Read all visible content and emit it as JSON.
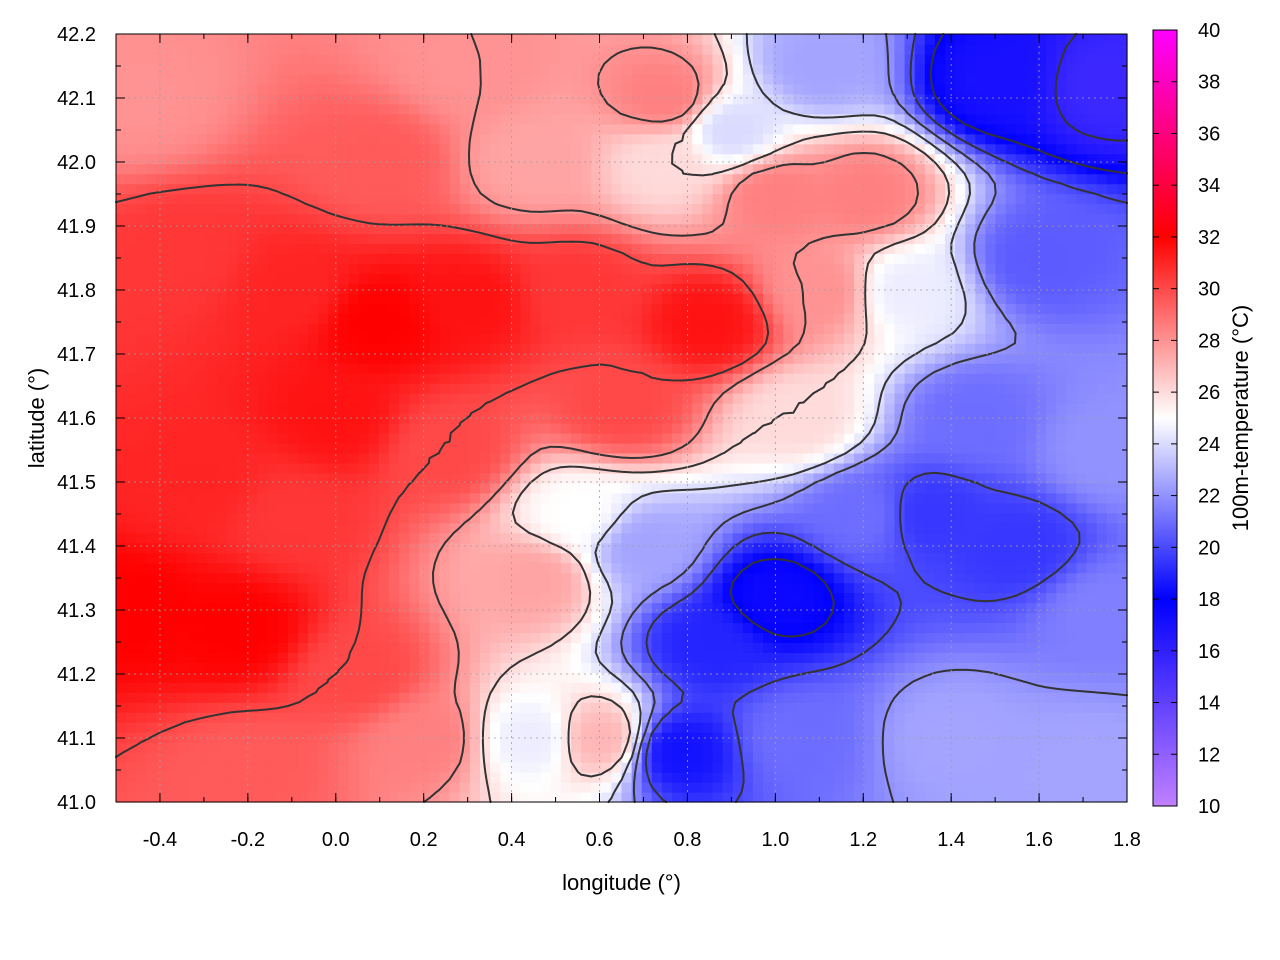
{
  "chart_data": {
    "type": "heatmap",
    "title": "",
    "xlabel": "longitude (°)",
    "ylabel": "latitude (°)",
    "colorbar_label": "100m-temperature (°C)",
    "xlim": [
      -0.5,
      1.8
    ],
    "ylim": [
      41.0,
      42.2
    ],
    "x_ticks": [
      -0.4,
      -0.2,
      0.0,
      0.2,
      0.4,
      0.6,
      0.8,
      1.0,
      1.2,
      1.4,
      1.6,
      1.8
    ],
    "x_tick_labels": [
      "-0.4",
      "-0.2",
      "0.0",
      "0.2",
      "0.4",
      "0.6",
      "0.8",
      "1.0",
      "1.2",
      "1.4",
      "1.6",
      "1.8"
    ],
    "y_ticks": [
      41.0,
      41.1,
      41.2,
      41.3,
      41.4,
      41.5,
      41.6,
      41.7,
      41.8,
      41.9,
      42.0,
      42.1,
      42.2
    ],
    "y_tick_labels": [
      "41.0",
      "41.1",
      "41.2",
      "41.3",
      "41.4",
      "41.5",
      "41.6",
      "41.7",
      "41.8",
      "41.9",
      "42.0",
      "42.1",
      "42.2"
    ],
    "color_range": [
      10,
      40
    ],
    "colorbar_ticks": [
      10,
      12,
      14,
      16,
      18,
      20,
      22,
      24,
      26,
      28,
      30,
      32,
      34,
      36,
      38,
      40
    ],
    "colorbar_tick_labels": [
      "10",
      "12",
      "14",
      "16",
      "18",
      "20",
      "22",
      "24",
      "26",
      "28",
      "30",
      "32",
      "34",
      "36",
      "38",
      "40"
    ],
    "colormap": [
      {
        "value": 10,
        "color": "#c080ff"
      },
      {
        "value": 18,
        "color": "#0000ff"
      },
      {
        "value": 25,
        "color": "#ffffff"
      },
      {
        "value": 32,
        "color": "#ff0000"
      },
      {
        "value": 40,
        "color": "#ff00ff"
      }
    ],
    "grid": true,
    "contour_interval": 2,
    "field_anchors": [
      {
        "x": -0.45,
        "y": 41.3,
        "value": 32.0
      },
      {
        "x": -0.22,
        "y": 41.27,
        "value": 32.0
      },
      {
        "x": -0.3,
        "y": 41.5,
        "value": 31.0
      },
      {
        "x": -0.1,
        "y": 41.45,
        "value": 30.5
      },
      {
        "x": 0.0,
        "y": 41.6,
        "value": 31.5
      },
      {
        "x": 0.1,
        "y": 41.75,
        "value": 32.0
      },
      {
        "x": -0.1,
        "y": 41.8,
        "value": 31.0
      },
      {
        "x": -0.35,
        "y": 41.85,
        "value": 30.5
      },
      {
        "x": 0.3,
        "y": 41.78,
        "value": 31.5
      },
      {
        "x": 0.55,
        "y": 41.8,
        "value": 30.5
      },
      {
        "x": 0.85,
        "y": 41.75,
        "value": 31.5
      },
      {
        "x": 0.65,
        "y": 41.62,
        "value": 30.0
      },
      {
        "x": 0.25,
        "y": 41.55,
        "value": 30.0
      },
      {
        "x": 0.1,
        "y": 42.0,
        "value": 29.5
      },
      {
        "x": -0.45,
        "y": 42.1,
        "value": 28.0
      },
      {
        "x": 0.3,
        "y": 42.15,
        "value": 28.0
      },
      {
        "x": 0.45,
        "y": 42.0,
        "value": 27.5
      },
      {
        "x": 0.75,
        "y": 42.1,
        "value": 28.5
      },
      {
        "x": 0.75,
        "y": 42.0,
        "value": 26.0
      },
      {
        "x": 0.9,
        "y": 42.05,
        "value": 24.0
      },
      {
        "x": 1.0,
        "y": 41.95,
        "value": 28.5
      },
      {
        "x": 1.2,
        "y": 41.95,
        "value": 28.5
      },
      {
        "x": 1.1,
        "y": 42.15,
        "value": 22.5
      },
      {
        "x": 1.3,
        "y": 41.8,
        "value": 24.5
      },
      {
        "x": 1.1,
        "y": 41.8,
        "value": 28.0
      },
      {
        "x": 1.05,
        "y": 41.6,
        "value": 26.0
      },
      {
        "x": 1.5,
        "y": 42.13,
        "value": 17.0
      },
      {
        "x": 1.75,
        "y": 42.12,
        "value": 15.5
      },
      {
        "x": 1.6,
        "y": 41.85,
        "value": 20.5
      },
      {
        "x": 1.45,
        "y": 41.6,
        "value": 21.0
      },
      {
        "x": 1.35,
        "y": 41.45,
        "value": 19.5
      },
      {
        "x": 1.55,
        "y": 41.4,
        "value": 19.5
      },
      {
        "x": 1.75,
        "y": 41.55,
        "value": 22.0
      },
      {
        "x": 1.75,
        "y": 41.3,
        "value": 21.5
      },
      {
        "x": 1.2,
        "y": 41.45,
        "value": 21.0
      },
      {
        "x": 1.0,
        "y": 41.32,
        "value": 17.5
      },
      {
        "x": 0.85,
        "y": 41.25,
        "value": 19.0
      },
      {
        "x": 0.78,
        "y": 41.08,
        "value": 18.5
      },
      {
        "x": 1.05,
        "y": 41.1,
        "value": 21.0
      },
      {
        "x": 1.4,
        "y": 41.1,
        "value": 22.5
      },
      {
        "x": 1.7,
        "y": 41.05,
        "value": 22.5
      },
      {
        "x": 0.7,
        "y": 41.4,
        "value": 22.5
      },
      {
        "x": 0.55,
        "y": 41.45,
        "value": 25.0
      },
      {
        "x": 0.45,
        "y": 41.35,
        "value": 27.5
      },
      {
        "x": 0.45,
        "y": 41.1,
        "value": 24.5
      },
      {
        "x": 0.6,
        "y": 41.1,
        "value": 27.0
      },
      {
        "x": 0.2,
        "y": 41.1,
        "value": 28.5
      },
      {
        "x": -0.2,
        "y": 41.05,
        "value": 29.5
      },
      {
        "x": 0.05,
        "y": 41.2,
        "value": 30.0
      }
    ]
  }
}
